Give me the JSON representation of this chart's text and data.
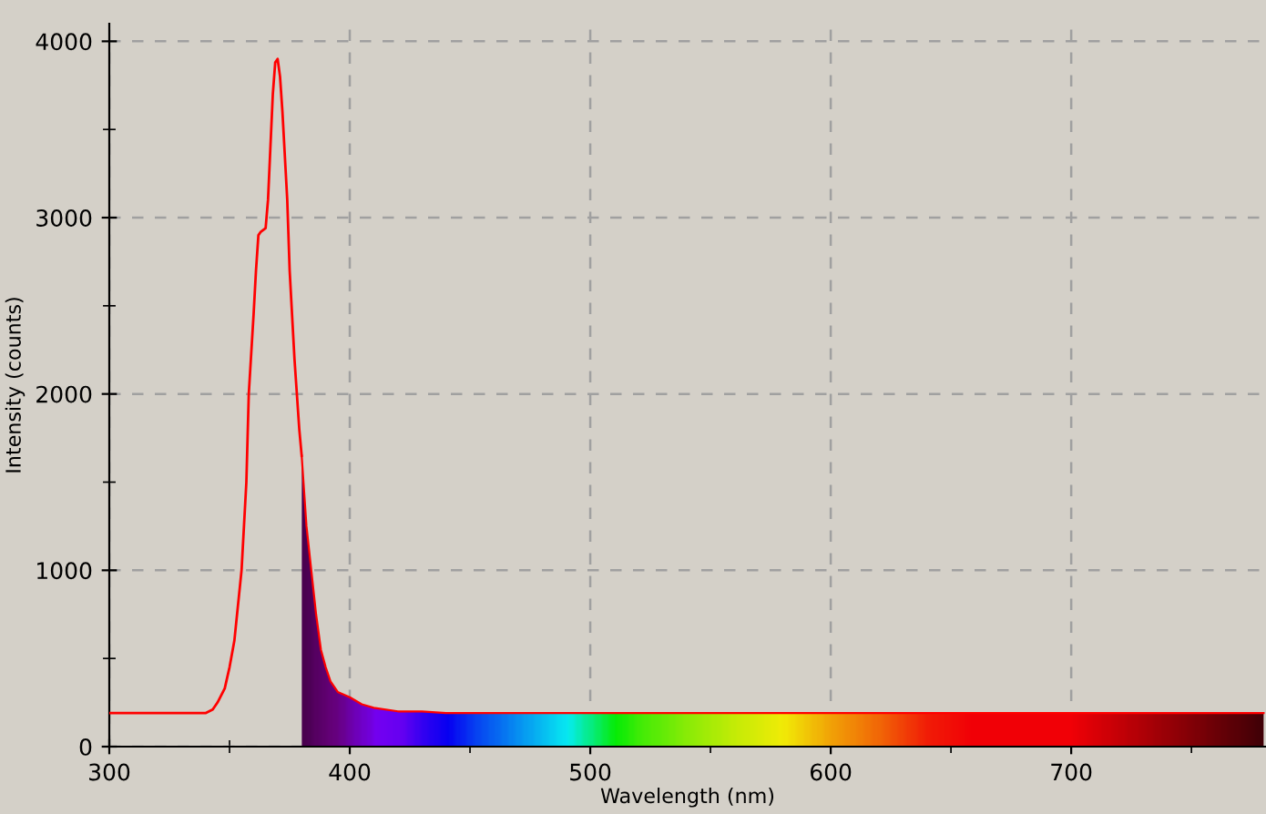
{
  "chart_data": {
    "type": "line",
    "xlabel": "Wavelength (nm)",
    "ylabel": "Intensity (counts)",
    "xlim": [
      300,
      781
    ],
    "ylim": [
      0,
      4100
    ],
    "xticks": [
      300,
      {
        "value": 350,
        "label": null
      },
      400,
      {
        "value": 450,
        "label": null
      },
      500,
      {
        "value": 550,
        "label": null
      },
      600,
      {
        "value": 650,
        "label": null
      },
      700,
      {
        "value": 750,
        "label": null
      }
    ],
    "yticks": [
      0,
      {
        "value": 500,
        "label": null
      },
      1000,
      {
        "value": 1500,
        "label": null
      },
      2000,
      {
        "value": 2500,
        "label": null
      },
      3000,
      {
        "value": 3500,
        "label": null
      },
      4000
    ],
    "grid": true,
    "series": [
      {
        "color": "#ff0000",
        "x": [
          300,
          340,
          343,
          345,
          348,
          350,
          352,
          355,
          357,
          358,
          360,
          361,
          362,
          363,
          365,
          366,
          367,
          368,
          369,
          370,
          371,
          372,
          373,
          374,
          375,
          377,
          379,
          380
        ],
        "values": [
          190,
          190,
          210,
          250,
          330,
          450,
          600,
          1000,
          1500,
          2000,
          2450,
          2700,
          2900,
          2920,
          2940,
          3100,
          3400,
          3700,
          3880,
          3900,
          3800,
          3600,
          3350,
          3100,
          2700,
          2200,
          1800,
          1650
        ]
      },
      {
        "type": "area",
        "color": "#ff0000",
        "x": [
          380,
          382,
          384,
          386,
          388,
          390,
          392,
          395,
          400,
          405,
          410,
          420,
          430,
          440,
          450,
          460,
          470,
          480,
          490,
          500,
          510,
          520,
          540,
          560,
          580,
          600,
          620,
          640,
          660,
          680,
          700,
          720,
          740,
          760,
          780
        ],
        "values": [
          1650,
          1250,
          1000,
          750,
          550,
          450,
          370,
          310,
          280,
          240,
          220,
          200,
          200,
          190,
          190,
          190,
          190,
          190,
          190,
          190,
          190,
          190,
          190,
          190,
          190,
          190,
          190,
          190,
          190,
          190,
          190,
          190,
          190,
          190,
          190
        ],
        "colors": [
          "#4a0050",
          "#500058",
          "#560062",
          "#5a006a",
          "#600070",
          "#640078",
          "#680080",
          "#6c0090",
          "#7000b8",
          "#7400d8",
          "#7800ff",
          "#6a00ff",
          "#3000ff",
          "#0000ff",
          "#0040ff",
          "#0070ff",
          "#00a0ff",
          "#00d0ff",
          "#00ffff",
          "#00ff80",
          "#00ff00",
          "#40ff00",
          "#90ff00",
          "#d0ff00",
          "#ffff00",
          "#ffb000",
          "#ff7000",
          "#ff2000",
          "#ff0000",
          "#ff0000",
          "#ff0000",
          "#d00000",
          "#a00000",
          "#700000",
          "#400000"
        ]
      }
    ]
  }
}
